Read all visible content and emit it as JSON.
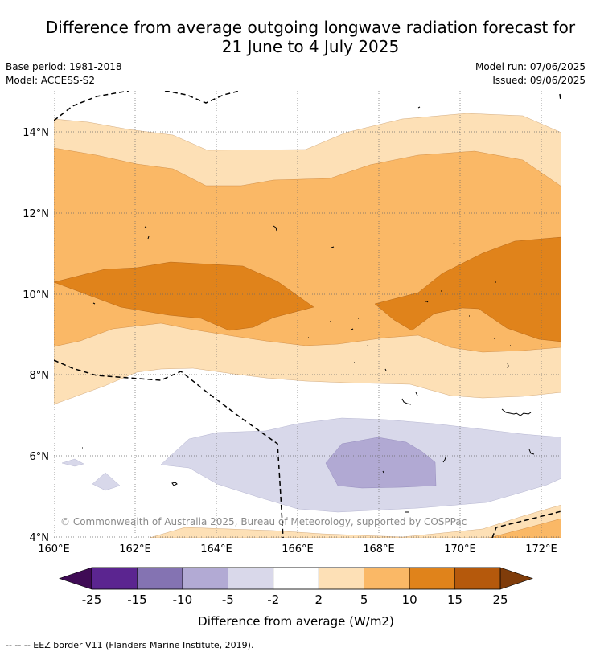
{
  "title_line1": "Difference from average outgoing longwave radiation forecast for",
  "title_line2": "21 June to 4 July 2025",
  "base_period": "Base period: 1981-2018",
  "model": "Model: ACCESS-S2",
  "model_run": "Model run: 07/06/2025",
  "issued": "Issued: 09/06/2025",
  "y_ticks": [
    "14°N",
    "12°N",
    "10°N",
    "8°N",
    "6°N",
    "4°N"
  ],
  "x_ticks": [
    "160°E",
    "162°E",
    "164°E",
    "166°E",
    "168°E",
    "170°E",
    "172°E"
  ],
  "copyright": "© Commonwealth of Australia 2025, Bureau of Meteorology, supported by COSPPac",
  "colorbar": {
    "ticks": [
      "-25",
      "-15",
      "-10",
      "-5",
      "-2",
      "2",
      "5",
      "10",
      "15",
      "25"
    ],
    "label": "Difference from average (W/m2)",
    "colors": [
      "#3f0b55",
      "#5b2590",
      "#8473b2",
      "#b2aad4",
      "#d9d8ea",
      "#ffffff",
      "#fde0b6",
      "#fab866",
      "#e0831b",
      "#b5590c",
      "#7f3c0a"
    ]
  },
  "footnote": "--  --  -- EEZ border V11 (Flanders Marine Institute, 2019).",
  "map": {
    "lon_range": [
      160,
      172.5
    ],
    "lat_range": [
      4,
      15
    ]
  }
}
